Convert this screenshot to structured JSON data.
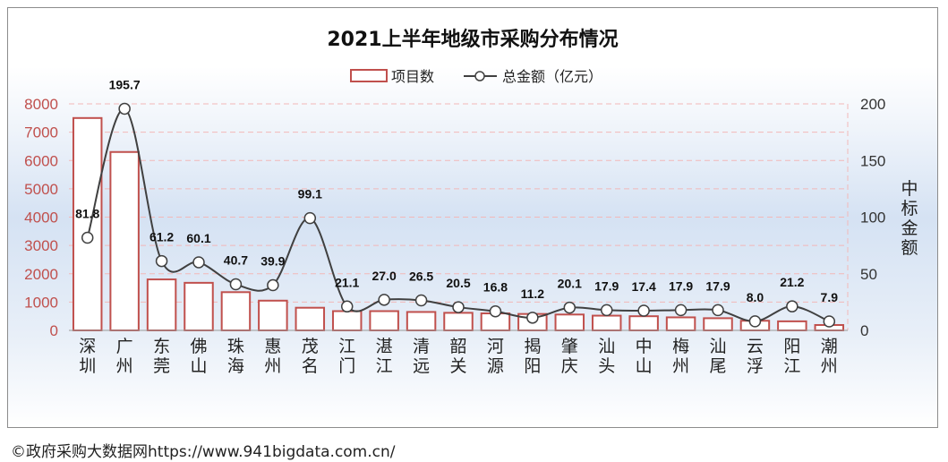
{
  "chart_data": {
    "type": "bar+line",
    "title": "2021上半年地级市采购分布情况",
    "legend": {
      "placement": "top-center",
      "bar_label": "项目数",
      "line_label": "总金额（亿元）"
    },
    "categories": [
      "深圳",
      "广州",
      "东莞",
      "佛山",
      "珠海",
      "惠州",
      "茂名",
      "江门",
      "湛江",
      "清远",
      "韶关",
      "河源",
      "揭阳",
      "肇庆",
      "汕头",
      "中山",
      "梅州",
      "汕尾",
      "云浮",
      "阳江",
      "潮州"
    ],
    "series": [
      {
        "name": "项目数",
        "type": "bar",
        "axis": "left",
        "values": [
          7500,
          6300,
          1800,
          1680,
          1350,
          1050,
          800,
          680,
          680,
          650,
          620,
          600,
          580,
          560,
          520,
          500,
          460,
          430,
          340,
          320,
          190
        ]
      },
      {
        "name": "总金额（亿元）",
        "type": "line",
        "axis": "right",
        "values": [
          81.8,
          195.7,
          61.2,
          60.1,
          40.7,
          39.9,
          99.1,
          21.1,
          27.0,
          26.5,
          20.5,
          16.8,
          11.2,
          20.1,
          17.9,
          17.4,
          17.9,
          17.9,
          8.0,
          21.2,
          7.9
        ],
        "labels": [
          "81.8",
          "195.7",
          "61.2",
          "60.1",
          "40.7",
          "39.9",
          "99.1",
          "21.1",
          "27.0",
          "26.5",
          "20.5",
          "16.8",
          "11.2",
          "20.1",
          "17.9",
          "17.4",
          "17.9",
          "17.9",
          "8.0",
          "21.2",
          "7.9"
        ]
      }
    ],
    "y_left": {
      "range": [
        0,
        8000
      ],
      "ticks": [
        "0",
        "1000",
        "2000",
        "3000",
        "4000",
        "5000",
        "6000",
        "7000",
        "8000"
      ]
    },
    "y_right": {
      "range": [
        0,
        200
      ],
      "ticks": [
        "0",
        "50",
        "100",
        "150",
        "200"
      ],
      "label": "中标金额"
    },
    "grid": "dashed-horizontal",
    "colors": {
      "bar_stroke": "#c0504d",
      "bar_fill": "#ffffff",
      "line": "#404040",
      "marker_fill": "#ffffff",
      "left_axis_text": "#c0504d",
      "grid": "#f2b8b8"
    }
  },
  "footer": "©政府采购大数据网https://www.941bigdata.com.cn/"
}
